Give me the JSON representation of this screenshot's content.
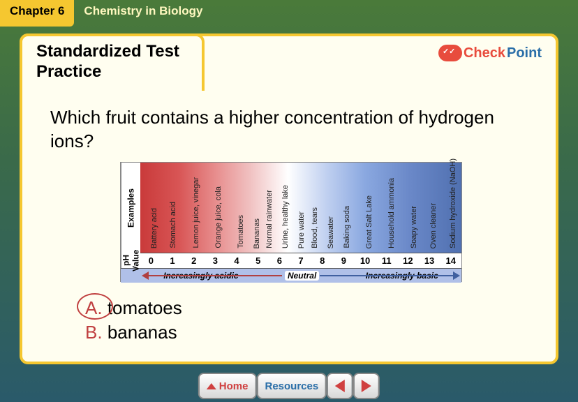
{
  "chapter_tab": "Chapter 6",
  "chapter_title": "Chemistry in Biology",
  "section_title_line1": "Standardized Test",
  "section_title_line2": "Practice",
  "checkpoint": {
    "check": "Check",
    "point": "Point"
  },
  "question": "Which fruit contains a higher concentration of hydrogen ions?",
  "answers": {
    "a": {
      "letter": "A.",
      "text": "tomatoes",
      "circled": true
    },
    "b": {
      "letter": "B.",
      "text": "bananas",
      "circled": false
    }
  },
  "ph_chart": {
    "row_labels": {
      "examples": "Examples",
      "ph": "pH Value"
    },
    "ph_values": [
      "0",
      "1",
      "2",
      "3",
      "4",
      "5",
      "6",
      "7",
      "8",
      "9",
      "10",
      "11",
      "12",
      "13",
      "14"
    ],
    "examples": [
      {
        "label": "Battery acid",
        "pos_pct": 3
      },
      {
        "label": "Stomach acid",
        "pos_pct": 9
      },
      {
        "label": "Lemon juice, vinegar",
        "pos_pct": 16
      },
      {
        "label": "Orange juice, cola",
        "pos_pct": 23
      },
      {
        "label": "Tomatoes",
        "pos_pct": 30
      },
      {
        "label": "Bananas",
        "pos_pct": 35
      },
      {
        "label": "Normal rainwater",
        "pos_pct": 39
      },
      {
        "label": "Urine, healthy lake",
        "pos_pct": 44
      },
      {
        "label": "Pure water",
        "pos_pct": 49
      },
      {
        "label": "Blood, tears",
        "pos_pct": 53
      },
      {
        "label": "Seawater",
        "pos_pct": 58
      },
      {
        "label": "Baking soda",
        "pos_pct": 63
      },
      {
        "label": "Great Salt Lake",
        "pos_pct": 70
      },
      {
        "label": "Household ammonia",
        "pos_pct": 77
      },
      {
        "label": "Soapy water",
        "pos_pct": 84
      },
      {
        "label": "Oven cleaner",
        "pos_pct": 90
      },
      {
        "label": "Sodium hydroxide (NaOH)",
        "pos_pct": 96
      }
    ],
    "arrow_labels": {
      "acidic": "Increasingly acidic",
      "neutral": "Neutral",
      "basic": "Increasingly basic"
    },
    "gradient_colors": [
      "#c93a3a",
      "#d85555",
      "#e89090",
      "#f0c0c0",
      "#ffffff",
      "#c0d0f0",
      "#8aa8e0",
      "#6a88c8",
      "#5070b0"
    ],
    "border_color": "#888888"
  },
  "nav": {
    "home": "Home",
    "resources": "Resources"
  }
}
